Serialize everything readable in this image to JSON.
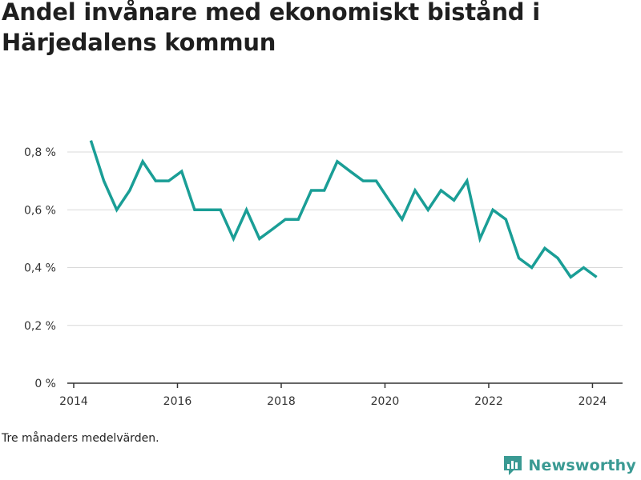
{
  "title": "Andel invånare med ekonomiskt bistånd i Härjedalens kommun",
  "note": "Tre månaders medelvärden.",
  "brand": {
    "name": "Newsworthy",
    "icon": "newsworthy-logo-icon",
    "color": "#3a9a93"
  },
  "colors": {
    "line": "#1a9e96",
    "grid": "#d9d9d9",
    "axis": "#333333"
  },
  "chart_data": {
    "type": "line",
    "title": "Andel invånare med ekonomiskt bistånd i Härjedalens kommun",
    "xlabel": "",
    "ylabel": "",
    "x_ticks": [
      "2014",
      "2016",
      "2018",
      "2020",
      "2022",
      "2024"
    ],
    "y_ticks": [
      "0 %",
      "0,2 %",
      "0,4 %",
      "0,6 %",
      "0,8 %"
    ],
    "y_tick_values": [
      0,
      0.2,
      0.4,
      0.6,
      0.8
    ],
    "xlim": [
      2014.0,
      2024.58
    ],
    "ylim": [
      0,
      0.8
    ],
    "grid": true,
    "series": [
      {
        "x": [
          2014.33,
          2014.58,
          2014.83,
          2015.08,
          2015.33,
          2015.58,
          2015.83,
          2016.08,
          2016.33,
          2016.58,
          2016.83,
          2017.08,
          2017.33,
          2017.58,
          2017.83,
          2018.08,
          2018.33,
          2018.58,
          2018.83,
          2019.08,
          2019.33,
          2019.58,
          2019.83,
          2020.08,
          2020.33,
          2020.58,
          2020.83,
          2021.08,
          2021.33,
          2021.58,
          2021.83,
          2022.08,
          2022.33,
          2022.58,
          2022.83,
          2023.08,
          2023.33,
          2023.58,
          2023.83,
          2024.08
        ],
        "values": [
          0.84,
          0.7,
          0.6,
          0.667,
          0.767,
          0.7,
          0.7,
          0.733,
          0.6,
          0.6,
          0.6,
          0.5,
          0.6,
          0.5,
          0.533,
          0.567,
          0.567,
          0.667,
          0.667,
          0.767,
          0.733,
          0.7,
          0.7,
          0.633,
          0.567,
          0.667,
          0.6,
          0.667,
          0.633,
          0.7,
          0.5,
          0.6,
          0.567,
          0.433,
          0.4,
          0.467,
          0.433,
          0.367,
          0.4,
          0.367
        ]
      }
    ]
  }
}
